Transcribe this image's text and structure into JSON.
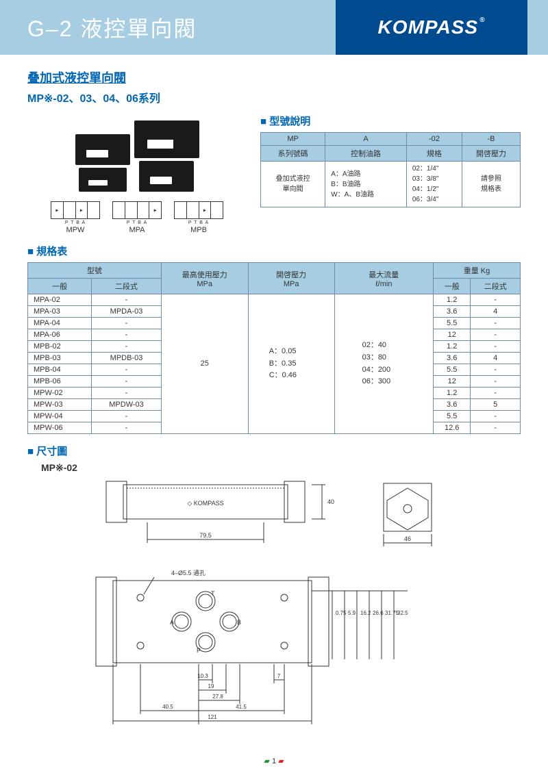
{
  "header": {
    "title": "G–2 液控單向閥",
    "brand": "KOMPASS"
  },
  "subtitle1": "叠加式液控單向閥",
  "subtitle2": "MP※-02、03、04、06系列",
  "sections": {
    "model": "型號說明",
    "spec": "規格表",
    "dim": "尺寸圖"
  },
  "schematics": [
    {
      "ports": "P  T  B  A",
      "name": "MPW"
    },
    {
      "ports": "P  T  B  A",
      "name": "MPA"
    },
    {
      "ports": "P  T  B  A",
      "name": "MPB"
    }
  ],
  "model_table": {
    "headers": [
      "MP",
      "A",
      "-02",
      "-B"
    ],
    "row2": [
      "系列號碼",
      "控制油路",
      "規格",
      "開啓壓力"
    ],
    "row3": [
      "叠加式液控\n單向閥",
      "A：A油路\nB：B油路\nW：A、B油路",
      "02：1/4\"\n03：3/8\"\n04：1/2\"\n06：3/4\"",
      "請參照\n規格表"
    ]
  },
  "spec_table": {
    "headers_top": [
      "型號",
      "最高使用壓力",
      "開啓壓力",
      "最大流量",
      "重量 Kg"
    ],
    "headers_sub_model": [
      "一般",
      "二段式"
    ],
    "headers_sub_unit": [
      "MPa",
      "MPa",
      "ℓ/min"
    ],
    "headers_sub_weight": [
      "一般",
      "二段式"
    ],
    "rows": [
      [
        "MPA-02",
        "-",
        "1.2",
        "-"
      ],
      [
        "MPA-03",
        "MPDA-03",
        "3.6",
        "4"
      ],
      [
        "MPA-04",
        "-",
        "5.5",
        "-"
      ],
      [
        "MPA-06",
        "-",
        "12",
        "-"
      ],
      [
        "MPB-02",
        "-",
        "1.2",
        "-"
      ],
      [
        "MPB-03",
        "MPDB-03",
        "3.6",
        "4"
      ],
      [
        "MPB-04",
        "-",
        "5.5",
        "-"
      ],
      [
        "MPB-06",
        "-",
        "12",
        "-"
      ],
      [
        "MPW-02",
        "-",
        "1.2",
        "-"
      ],
      [
        "MPW-03",
        "MPDW-03",
        "3.6",
        "5"
      ],
      [
        "MPW-04",
        "-",
        "5.5",
        "-"
      ],
      [
        "MPW-06",
        "-",
        "12.6",
        "-"
      ]
    ],
    "max_pressure": "25",
    "crack_pressure": "A：0.05\nB：0.35\nC：0.46",
    "max_flow": "02：40\n03：80\n04：200\n06：300"
  },
  "dim": {
    "model": "MP※-02",
    "brand_on_part": "KOMPASS",
    "hole_note": "4–Ø5.5 通孔",
    "dims": {
      "side_h": "40",
      "len1": "79.5",
      "hex_w": "46",
      "d075": "0.75",
      "d59": "5.9",
      "d162": "16.2",
      "d266": "26.6",
      "d3175": "31.75",
      "d325": "32.5",
      "d103": "10.3",
      "d19": "19",
      "d278": "27.8",
      "d405": "40.5",
      "d7": "7",
      "d415": "41.5",
      "d121": "121"
    },
    "ports": {
      "T": "T",
      "A": "A",
      "B": "B",
      "P": "P"
    }
  },
  "page": "1",
  "colors": {
    "accent_light": "#a7cde3",
    "accent_dark": "#004a8f",
    "brand_blue": "#0066b3",
    "border": "#6a8aa5"
  }
}
